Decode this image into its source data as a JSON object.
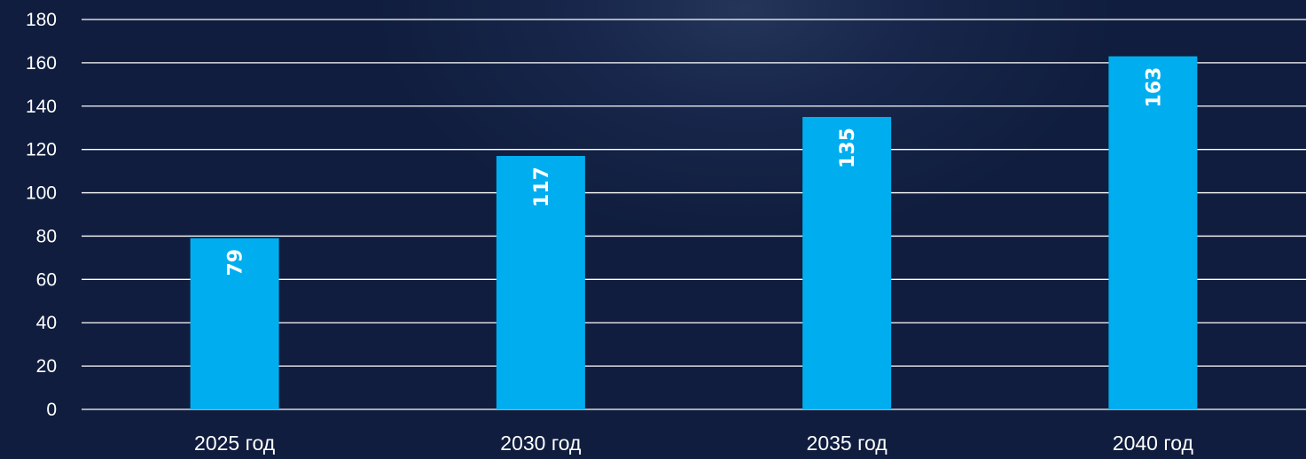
{
  "chart_data": {
    "type": "bar",
    "categories": [
      "2025 год",
      "2030 год",
      "2035 год",
      "2040 год"
    ],
    "values": [
      79,
      117,
      135,
      163
    ],
    "data_labels": [
      "79",
      "117",
      "135",
      "163"
    ],
    "ylim": [
      0,
      180
    ],
    "yticks": [
      "0",
      "20",
      "40",
      "60",
      "80",
      "100",
      "120",
      "140",
      "160",
      "180"
    ],
    "grid": true,
    "legend": "none",
    "data_label_orientation": "vertical",
    "colors": {
      "bar": "#00aeef",
      "grid": "#ffffff",
      "text": "#ffffff",
      "background": "#101d3e"
    }
  }
}
